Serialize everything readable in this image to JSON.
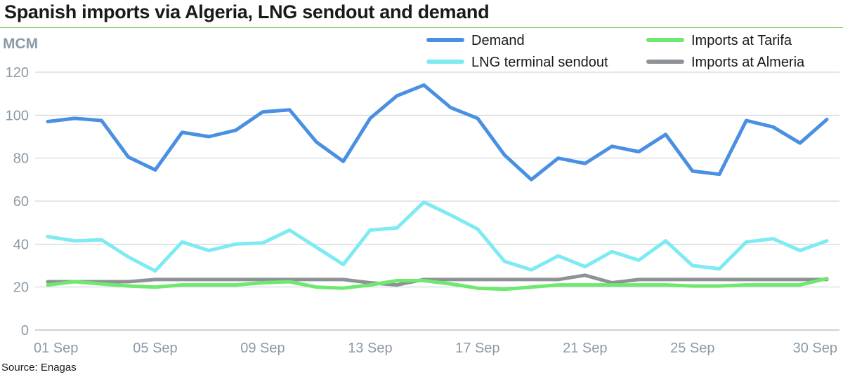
{
  "title": "Spanish imports via Algeria, LNG sendout and demand",
  "source": "Source: Enagas",
  "chart_data": {
    "type": "line",
    "title": "Spanish imports via Algeria, LNG sendout and demand",
    "ylabel": "MCM",
    "xlabel": "",
    "ylim": [
      0,
      120
    ],
    "yticks": [
      0,
      20,
      40,
      60,
      80,
      100,
      120
    ],
    "grid": "horizontal",
    "legend_position": "top-right",
    "x": [
      1,
      2,
      3,
      4,
      5,
      6,
      7,
      8,
      9,
      10,
      11,
      12,
      13,
      14,
      15,
      16,
      17,
      18,
      19,
      20,
      21,
      22,
      23,
      24,
      25,
      26,
      27,
      28,
      29,
      30
    ],
    "xtick_labels": [
      {
        "x": 1,
        "label": "01 Sep"
      },
      {
        "x": 5,
        "label": "05 Sep"
      },
      {
        "x": 9,
        "label": "09 Sep"
      },
      {
        "x": 13,
        "label": "13 Sep"
      },
      {
        "x": 17,
        "label": "17 Sep"
      },
      {
        "x": 21,
        "label": "21 Sep"
      },
      {
        "x": 25,
        "label": "25 Sep"
      },
      {
        "x": 30,
        "label": "30 Sep"
      }
    ],
    "series": [
      {
        "name": "Demand",
        "color": "#4a90e2",
        "values": [
          97,
          98.5,
          97.5,
          80.5,
          74.5,
          92,
          90,
          93,
          101.5,
          102.5,
          87.5,
          78.5,
          98.5,
          109,
          114,
          103.5,
          98.5,
          81.5,
          70,
          80,
          77.5,
          85.5,
          83,
          91,
          74,
          72.5,
          97.5,
          94.5,
          87,
          98
        ]
      },
      {
        "name": "LNG terminal sendout",
        "color": "#7eeaf2",
        "values": [
          43.5,
          41.5,
          42,
          34,
          27.5,
          41,
          37,
          40,
          40.5,
          46.5,
          38.5,
          30.5,
          46.5,
          47.5,
          59.5,
          53.5,
          47,
          32,
          28,
          34.5,
          29.5,
          36.5,
          32.5,
          41.5,
          30,
          28.5,
          41,
          42.5,
          37,
          41.5
        ]
      },
      {
        "name": "Imports at Tarifa",
        "color": "#6ee86e",
        "values": [
          21,
          22.5,
          21.5,
          20.5,
          20,
          21,
          21,
          21,
          22,
          22.5,
          20,
          19.5,
          21,
          23,
          23,
          21.5,
          19.5,
          19,
          20,
          21,
          21,
          21,
          21,
          21,
          20.5,
          20.5,
          21,
          21,
          21,
          24
        ]
      },
      {
        "name": "Imports at Almeria",
        "color": "#8e9196",
        "values": [
          22.5,
          22.5,
          22.5,
          22.5,
          23.5,
          23.5,
          23.5,
          23.5,
          23.5,
          23.5,
          23.5,
          23.5,
          22,
          21,
          23.5,
          23.5,
          23.5,
          23.5,
          23.5,
          23.5,
          25.5,
          22,
          23.5,
          23.5,
          23.5,
          23.5,
          23.5,
          23.5,
          23.5,
          23.5
        ]
      }
    ]
  }
}
